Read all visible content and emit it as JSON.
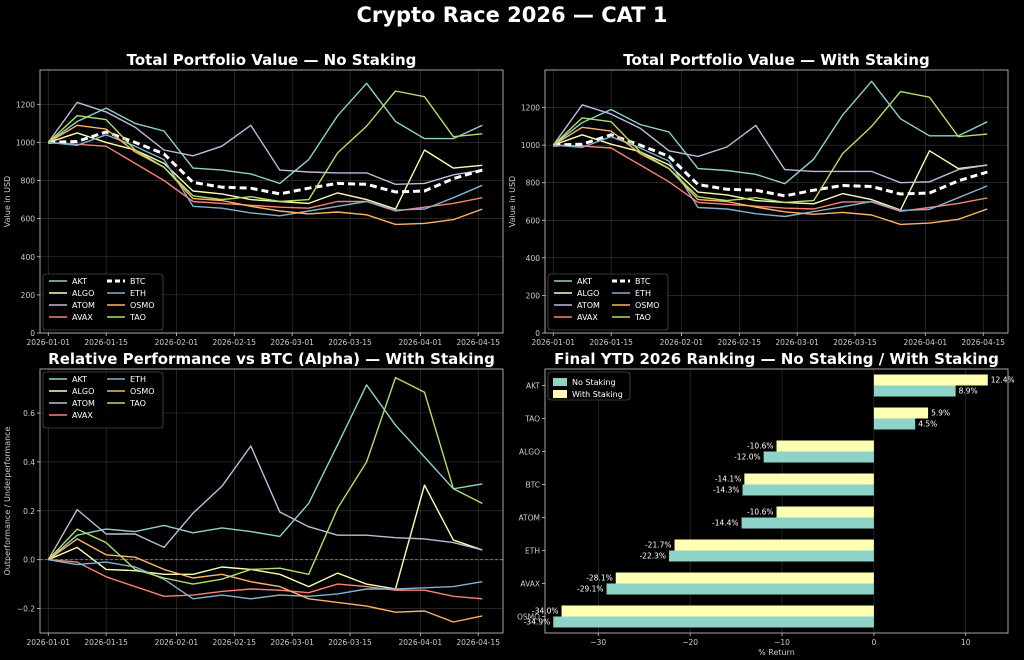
{
  "suptitle": "Crypto Race 2026 — CAT 1",
  "colors": {
    "AKT": "#8dd3c7",
    "ALGO": "#feffb3",
    "ATOM": "#bfbbd9",
    "AVAX": "#fa8174",
    "BTC": "#ffffff",
    "ETH": "#81b1d2",
    "OSMO": "#fdb462",
    "TAO": "#b3de69",
    "no_staking": "#8dd3c7",
    "with_staking": "#feffb3",
    "grid": "#3a3a3a",
    "axis": "#cccccc",
    "zero": "#888888"
  },
  "chart_data": [
    {
      "type": "line",
      "title": "Total Portfolio Value — No Staking",
      "xlabel": "",
      "ylabel": "Value in USD",
      "ylim": [
        0,
        1380
      ],
      "yticks": [
        0,
        200,
        400,
        600,
        800,
        1000,
        1200
      ],
      "xlim": [
        -2,
        110
      ],
      "x_days": [
        0,
        7,
        14,
        21,
        28,
        35,
        42,
        49,
        56,
        63,
        70,
        77,
        84,
        91,
        98,
        105
      ],
      "xtick_days": [
        0,
        14,
        31,
        45,
        59,
        73,
        90,
        104
      ],
      "xtick_labels": [
        "2026-01-01",
        "2026-01-15",
        "2026-02-01",
        "2026-02-15",
        "2026-03-01",
        "2026-03-15",
        "2026-04-01",
        "2026-04-15"
      ],
      "legend_loc": "lower left",
      "legend_cols": [
        [
          "AKT",
          "ALGO",
          "ATOM",
          "AVAX"
        ],
        [
          "BTC",
          "ETH",
          "OSMO",
          "TAO"
        ]
      ],
      "series": [
        {
          "name": "AKT",
          "values": [
            1000,
            1110,
            1180,
            1100,
            1060,
            865,
            855,
            835,
            785,
            910,
            1140,
            1310,
            1110,
            1020,
            1020,
            1090
          ]
        },
        {
          "name": "ALGO",
          "values": [
            1000,
            1050,
            1000,
            960,
            890,
            745,
            730,
            700,
            690,
            680,
            735,
            700,
            650,
            960,
            865,
            880
          ]
        },
        {
          "name": "ATOM",
          "values": [
            1000,
            1210,
            1160,
            1080,
            960,
            930,
            980,
            1090,
            855,
            845,
            840,
            840,
            780,
            785,
            830,
            855
          ]
        },
        {
          "name": "AVAX",
          "values": [
            1000,
            990,
            980,
            890,
            800,
            690,
            680,
            670,
            660,
            655,
            690,
            690,
            640,
            660,
            680,
            710
          ]
        },
        {
          "name": "BTC",
          "values": [
            1000,
            1005,
            1055,
            1000,
            940,
            790,
            765,
            760,
            730,
            760,
            785,
            780,
            740,
            745,
            810,
            855
          ]
        },
        {
          "name": "ETH",
          "values": [
            1000,
            985,
            1040,
            980,
            910,
            665,
            655,
            630,
            615,
            640,
            665,
            690,
            645,
            650,
            710,
            775
          ]
        },
        {
          "name": "OSMO",
          "values": [
            1000,
            1090,
            1070,
            950,
            870,
            705,
            695,
            665,
            640,
            625,
            635,
            620,
            570,
            575,
            595,
            650
          ]
        },
        {
          "name": "TAO",
          "values": [
            1000,
            1140,
            1120,
            960,
            870,
            720,
            700,
            715,
            690,
            700,
            945,
            1085,
            1270,
            1240,
            1030,
            1045
          ]
        }
      ]
    },
    {
      "type": "line",
      "title": "Total Portfolio Value — With Staking",
      "xlabel": "",
      "ylabel": "Value in USD",
      "ylim": [
        0,
        1400
      ],
      "yticks": [
        0,
        200,
        400,
        600,
        800,
        1000,
        1200
      ],
      "xlim": [
        -2,
        110
      ],
      "x_days": [
        0,
        7,
        14,
        21,
        28,
        35,
        42,
        49,
        56,
        63,
        70,
        77,
        84,
        91,
        98,
        105
      ],
      "xtick_days": [
        0,
        14,
        31,
        45,
        59,
        73,
        90,
        104
      ],
      "xtick_labels": [
        "2026-01-01",
        "2026-01-15",
        "2026-02-01",
        "2026-02-15",
        "2026-03-01",
        "2026-03-15",
        "2026-04-01",
        "2026-04-15"
      ],
      "legend_loc": "lower left",
      "legend_cols": [
        [
          "AKT",
          "ALGO",
          "ATOM",
          "AVAX"
        ],
        [
          "BTC",
          "ETH",
          "OSMO",
          "TAO"
        ]
      ],
      "series": [
        {
          "name": "AKT",
          "values": [
            1000,
            1120,
            1190,
            1110,
            1070,
            875,
            865,
            845,
            795,
            925,
            1160,
            1340,
            1140,
            1050,
            1050,
            1124
          ]
        },
        {
          "name": "ALGO",
          "values": [
            1000,
            1055,
            1005,
            965,
            895,
            750,
            735,
            705,
            695,
            688,
            742,
            710,
            655,
            970,
            875,
            894
          ]
        },
        {
          "name": "ATOM",
          "values": [
            1000,
            1215,
            1165,
            1090,
            970,
            940,
            990,
            1105,
            870,
            860,
            860,
            860,
            800,
            805,
            870,
            894
          ]
        },
        {
          "name": "AVAX",
          "values": [
            1000,
            995,
            985,
            895,
            805,
            695,
            685,
            675,
            665,
            660,
            698,
            698,
            648,
            668,
            690,
            719
          ]
        },
        {
          "name": "BTC",
          "values": [
            1000,
            1005,
            1055,
            1000,
            940,
            790,
            765,
            760,
            730,
            760,
            785,
            780,
            740,
            745,
            810,
            857
          ]
        },
        {
          "name": "ETH",
          "values": [
            1000,
            988,
            1045,
            985,
            915,
            668,
            660,
            635,
            620,
            646,
            672,
            700,
            652,
            658,
            720,
            783
          ]
        },
        {
          "name": "OSMO",
          "values": [
            1000,
            1095,
            1075,
            955,
            875,
            710,
            700,
            670,
            645,
            632,
            642,
            628,
            578,
            585,
            605,
            660
          ]
        },
        {
          "name": "TAO",
          "values": [
            1000,
            1145,
            1125,
            965,
            875,
            725,
            705,
            720,
            695,
            705,
            955,
            1100,
            1285,
            1255,
            1045,
            1059
          ]
        }
      ]
    },
    {
      "type": "line",
      "title": "Relative Performance vs BTC (Alpha) — With Staking",
      "xlabel": "",
      "ylabel": "Outperformance / Underperformance",
      "ylim": [
        -0.3,
        0.78
      ],
      "yticks": [
        -0.2,
        0.0,
        0.2,
        0.4,
        0.6
      ],
      "ytick_labels": [
        "−0.2",
        "0.0",
        "0.2",
        "0.4",
        "0.6"
      ],
      "xlim": [
        -2,
        110
      ],
      "x_days": [
        0,
        7,
        14,
        21,
        28,
        35,
        42,
        49,
        56,
        63,
        70,
        77,
        84,
        91,
        98,
        105
      ],
      "xtick_days": [
        0,
        14,
        31,
        45,
        59,
        73,
        90,
        104
      ],
      "xtick_labels": [
        "2026-01-01",
        "2026-01-15",
        "2026-02-01",
        "2026-02-15",
        "2026-03-01",
        "2026-03-15",
        "2026-04-01",
        "2026-04-15"
      ],
      "zero_line": true,
      "legend_loc": "upper left",
      "legend_cols": [
        [
          "AKT",
          "ALGO",
          "ATOM",
          "AVAX"
        ],
        [
          "ETH",
          "OSMO",
          "TAO"
        ]
      ],
      "series": [
        {
          "name": "AKT",
          "values": [
            0,
            0.1,
            0.125,
            0.115,
            0.14,
            0.11,
            0.13,
            0.115,
            0.095,
            0.23,
            0.47,
            0.715,
            0.55,
            0.42,
            0.29,
            0.31
          ]
        },
        {
          "name": "ALGO",
          "values": [
            0,
            0.05,
            -0.04,
            -0.045,
            -0.06,
            -0.06,
            -0.03,
            -0.04,
            -0.06,
            -0.11,
            -0.055,
            -0.1,
            -0.12,
            0.305,
            0.08,
            0.04
          ]
        },
        {
          "name": "ATOM",
          "values": [
            0,
            0.205,
            0.105,
            0.105,
            0.05,
            0.19,
            0.3,
            0.465,
            0.195,
            0.135,
            0.1,
            0.1,
            0.09,
            0.085,
            0.07,
            0.04
          ]
        },
        {
          "name": "AVAX",
          "values": [
            0,
            -0.01,
            -0.07,
            -0.11,
            -0.15,
            -0.145,
            -0.13,
            -0.12,
            -0.125,
            -0.135,
            -0.1,
            -0.11,
            -0.125,
            -0.125,
            -0.15,
            -0.16
          ]
        },
        {
          "name": "ETH",
          "values": [
            0,
            -0.02,
            -0.01,
            -0.03,
            -0.08,
            -0.16,
            -0.145,
            -0.16,
            -0.145,
            -0.15,
            -0.14,
            -0.12,
            -0.12,
            -0.115,
            -0.11,
            -0.09
          ]
        },
        {
          "name": "OSMO",
          "values": [
            0,
            0.085,
            0.02,
            0.01,
            -0.04,
            -0.075,
            -0.06,
            -0.09,
            -0.11,
            -0.16,
            -0.175,
            -0.19,
            -0.215,
            -0.21,
            -0.255,
            -0.23
          ]
        },
        {
          "name": "TAO",
          "values": [
            0,
            0.125,
            0.07,
            -0.04,
            -0.075,
            -0.1,
            -0.08,
            -0.04,
            -0.035,
            -0.06,
            0.21,
            0.4,
            0.745,
            0.685,
            0.29,
            0.23
          ]
        }
      ]
    },
    {
      "type": "bar",
      "orientation": "horizontal",
      "title": "Final YTD 2026 Ranking — No Staking / With Staking",
      "xlabel": "% Return",
      "ylabel": "",
      "xlim": [
        -35.8,
        14.6
      ],
      "xticks": [
        -30,
        -20,
        -10,
        0,
        10
      ],
      "xtick_labels": [
        "−30",
        "−20",
        "−10",
        "0",
        "10"
      ],
      "legend_loc": "upper left",
      "categories": [
        "AKT",
        "TAO",
        "ALGO",
        "BTC",
        "ATOM",
        "ETH",
        "AVAX",
        "OSMO"
      ],
      "series": [
        {
          "name": "No Staking",
          "values": [
            8.9,
            4.5,
            -12.0,
            -14.3,
            -14.4,
            -22.3,
            -29.1,
            -34.9
          ],
          "labels": [
            "8.9%",
            "4.5%",
            "-12.0%",
            "-14.3%",
            "-14.4%",
            "-22.3%",
            "-29.1%",
            "-34.9%"
          ]
        },
        {
          "name": "With Staking",
          "values": [
            12.4,
            5.9,
            -10.6,
            -14.1,
            -10.6,
            -21.7,
            -28.1,
            -34.0
          ],
          "labels": [
            "12.4%",
            "5.9%",
            "-10.6%",
            "-14.1%",
            "-10.6%",
            "-21.7%",
            "-28.1%",
            "-34.0%"
          ]
        }
      ]
    }
  ]
}
